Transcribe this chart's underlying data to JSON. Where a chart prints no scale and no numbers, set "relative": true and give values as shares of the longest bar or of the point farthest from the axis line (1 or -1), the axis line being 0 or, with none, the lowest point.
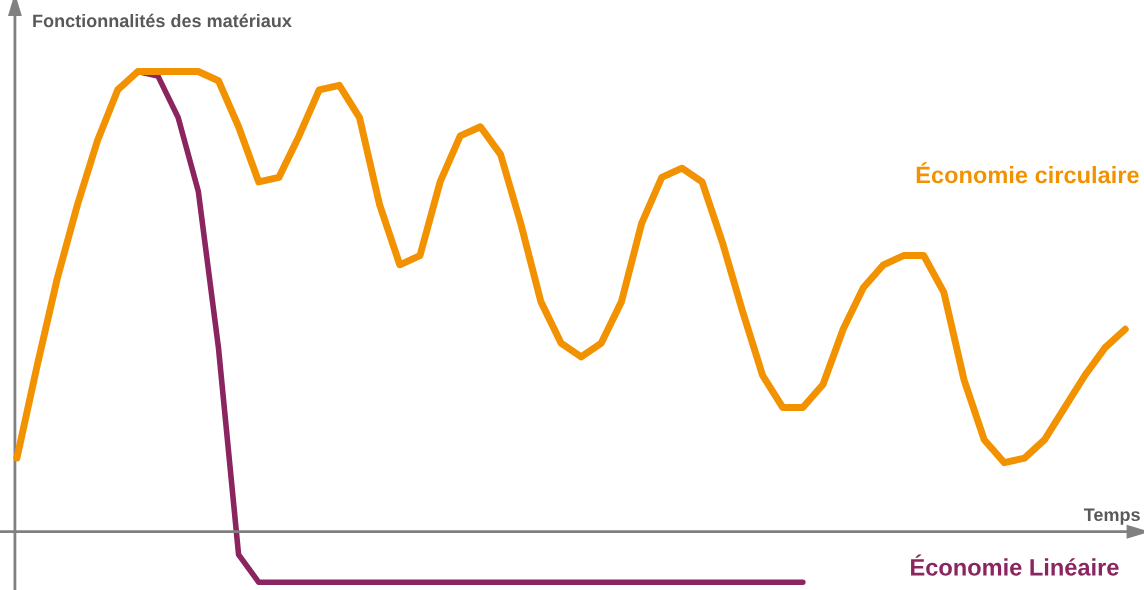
{
  "chart_data": {
    "type": "line",
    "relative": true,
    "xlabel": "Temps",
    "ylabel": "Fonctionnalités des matériaux",
    "legend": false,
    "marker": "none",
    "line_style": "solid",
    "categories": [
      null,
      null,
      null,
      null,
      null,
      null,
      null,
      null,
      null,
      null,
      null,
      null,
      null,
      null,
      null,
      null,
      null,
      null,
      null,
      null,
      null,
      null,
      null,
      null,
      null,
      null,
      null,
      null,
      null,
      null,
      null,
      null,
      null,
      null,
      null,
      null,
      null,
      null,
      null,
      null,
      null,
      null,
      null,
      null,
      null,
      null,
      null,
      null,
      null,
      null,
      null,
      null,
      null,
      null,
      null,
      null
    ],
    "series": [
      {
        "name": "Économie circulaire",
        "color": "#f39200",
        "values": [
          0.16,
          0.36,
          0.55,
          0.71,
          0.85,
          0.96,
          1.0,
          1.0,
          1.0,
          1.0,
          0.98,
          0.88,
          0.76,
          0.77,
          0.86,
          0.96,
          0.97,
          0.9,
          0.71,
          0.58,
          0.6,
          0.76,
          0.86,
          0.88,
          0.82,
          0.67,
          0.5,
          0.41,
          0.38,
          0.41,
          0.5,
          0.67,
          0.77,
          0.79,
          0.76,
          0.63,
          0.48,
          0.34,
          0.27,
          0.27,
          0.32,
          0.44,
          0.53,
          0.58,
          0.6,
          0.6,
          0.52,
          0.33,
          0.2,
          0.15,
          0.16,
          0.2,
          0.27,
          0.34,
          0.4,
          0.44
        ]
      },
      {
        "name": "Économie Linéaire",
        "color": "#8b2560",
        "values": [
          null,
          null,
          null,
          null,
          null,
          null,
          1.0,
          0.99,
          0.9,
          0.74,
          0.4,
          -0.05,
          -0.11,
          -0.11,
          -0.11,
          -0.11,
          -0.11,
          -0.11,
          -0.11,
          -0.11,
          -0.11,
          -0.11,
          -0.11,
          -0.11,
          -0.11,
          -0.11,
          -0.11,
          -0.11,
          -0.11,
          -0.11,
          -0.11,
          -0.11,
          -0.11,
          -0.11,
          -0.11,
          -0.11,
          -0.11,
          -0.11,
          -0.11,
          -0.11,
          null,
          null,
          null,
          null,
          null,
          null,
          null,
          null,
          null,
          null,
          null,
          null,
          null,
          null,
          null,
          null
        ]
      }
    ]
  }
}
